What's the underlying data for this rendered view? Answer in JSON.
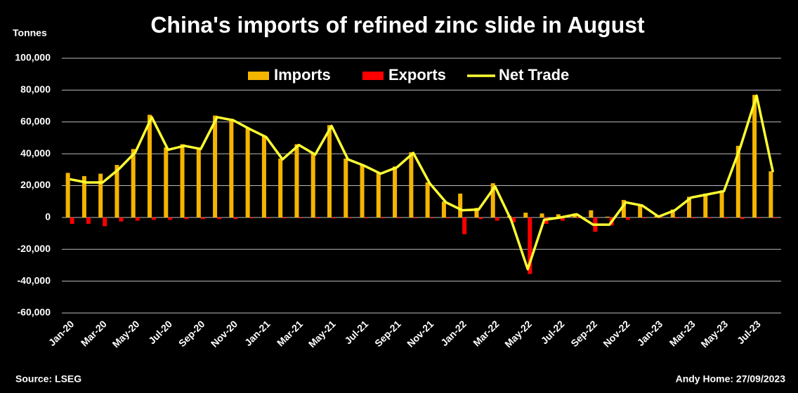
{
  "chart_data": {
    "type": "bar",
    "title": "China's imports of refined zinc slide in August",
    "y_label": "Tonnes",
    "source": "Source: LSEG",
    "credit": "Andy Home: 27/09/2023",
    "categories": [
      "Jan-20",
      null,
      "Mar-20",
      null,
      "May-20",
      null,
      "Jul-20",
      null,
      "Sep-20",
      null,
      "Nov-20",
      null,
      "Jan-21",
      null,
      "Mar-21",
      null,
      "May-21",
      null,
      "Jul-21",
      null,
      "Sep-21",
      null,
      "Nov-21",
      null,
      "Jan-22",
      null,
      "Mar-22",
      null,
      "May-22",
      null,
      "Jul-22",
      null,
      "Sep-22",
      null,
      "Nov-22",
      null,
      "Jan-23",
      null,
      "Mar-23",
      null,
      "May-23",
      null,
      "Jul-23",
      null
    ],
    "series": [
      {
        "name": "Imports",
        "type": "bar",
        "color": "#f5b400",
        "values": [
          28000,
          26000,
          27500,
          33000,
          43000,
          64500,
          44000,
          46000,
          44000,
          64000,
          62000,
          56000,
          51000,
          37000,
          46000,
          40000,
          58000,
          37000,
          33000,
          28000,
          32000,
          41000,
          22000,
          10000,
          15000,
          6000,
          21500,
          1000,
          3000,
          2500,
          2000,
          2500,
          4500,
          500,
          11000,
          8000,
          1000,
          5000,
          13000,
          15000,
          17000,
          45000,
          77000,
          29000
        ]
      },
      {
        "name": "Exports",
        "type": "bar",
        "color": "#ff0000",
        "values": [
          -4000,
          -4000,
          -5500,
          -2500,
          -2000,
          -1500,
          -1500,
          -1000,
          -1000,
          -1000,
          -1000,
          -500,
          -500,
          -500,
          -500,
          -500,
          -500,
          -500,
          -500,
          -500,
          -500,
          -500,
          -500,
          -500,
          -10500,
          -1000,
          -2000,
          -3000,
          -35500,
          -4000,
          -2000,
          -500,
          -9000,
          -5000,
          -1500,
          -500,
          -500,
          -500,
          -500,
          -500,
          -500,
          -1000,
          -500,
          -500
        ]
      },
      {
        "name": "Net Trade",
        "type": "line",
        "color": "#ffff33",
        "values": [
          24000,
          22000,
          22000,
          30500,
          41000,
          63000,
          42500,
          45000,
          43000,
          63000,
          61000,
          55500,
          50500,
          36500,
          45500,
          39500,
          57500,
          36500,
          32500,
          27500,
          31500,
          40500,
          21500,
          9500,
          4500,
          5000,
          19500,
          -2000,
          -32500,
          -1500,
          0,
          2000,
          -4500,
          -4500,
          9500,
          7500,
          500,
          4500,
          12500,
          14500,
          16500,
          44000,
          76500,
          28500
        ]
      }
    ],
    "ylim": [
      -60000,
      100000
    ],
    "yticks": [
      {
        "value": -60000,
        "label": "-60,000"
      },
      {
        "value": -40000,
        "label": "-40,000"
      },
      {
        "value": -20000,
        "label": "-20,000"
      },
      0,
      {
        "value": 20000,
        "label": "20,000"
      },
      {
        "value": 40000,
        "label": "40,000"
      },
      {
        "value": 60000,
        "label": "60,000"
      },
      {
        "value": 80000,
        "label": "80,000"
      },
      {
        "value": 100000,
        "label": "100,000"
      }
    ],
    "grid": true
  }
}
